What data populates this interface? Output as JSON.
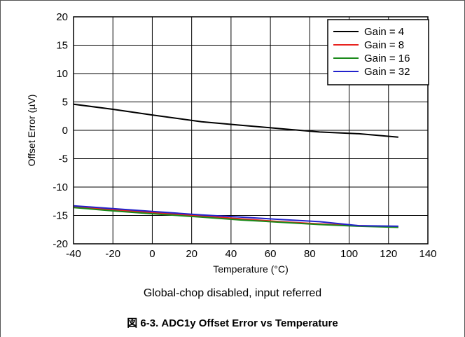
{
  "chart_data": {
    "type": "line",
    "xlabel": "Temperature (°C)",
    "ylabel": "Offset Error (µV)",
    "xlim": [
      -40,
      140
    ],
    "ylim": [
      -20,
      20
    ],
    "x_ticks": [
      "-40",
      "-20",
      "0",
      "20",
      "40",
      "60",
      "80",
      "100",
      "120",
      "140"
    ],
    "y_ticks": [
      "20",
      "15",
      "10",
      "5",
      "0",
      "-5",
      "-10",
      "-15",
      "-20"
    ],
    "grid": true,
    "legend_position": "top-right",
    "series": [
      {
        "name": "Gain = 4",
        "color": "#000000",
        "x": [
          -40,
          -20,
          0,
          25,
          45,
          65,
          85,
          105,
          125
        ],
        "y": [
          4.6,
          3.7,
          2.7,
          1.5,
          0.9,
          0.3,
          -0.3,
          -0.6,
          -1.2
        ]
      },
      {
        "name": "Gain = 8",
        "color": "#e8231f",
        "x": [
          -40,
          -20,
          0,
          25,
          45,
          65,
          85,
          105,
          125
        ],
        "y": [
          -13.5,
          -14.0,
          -14.5,
          -15.1,
          -15.6,
          -16.1,
          -16.5,
          -16.8,
          -17.0
        ]
      },
      {
        "name": "Gain = 16",
        "color": "#1a8a1a",
        "x": [
          -40,
          -20,
          0,
          25,
          45,
          65,
          85,
          105,
          125
        ],
        "y": [
          -13.6,
          -14.2,
          -14.7,
          -15.3,
          -15.8,
          -16.2,
          -16.6,
          -16.9,
          -17.1
        ]
      },
      {
        "name": "Gain = 32",
        "color": "#2222cc",
        "x": [
          -40,
          -20,
          0,
          25,
          45,
          65,
          85,
          105,
          125
        ],
        "y": [
          -13.3,
          -13.8,
          -14.3,
          -14.9,
          -15.3,
          -15.7,
          -16.1,
          -16.8,
          -16.9
        ]
      }
    ]
  },
  "caption": {
    "subtitle": "Global-chop disabled, input referred",
    "figure_title": "図 6-3. ADC1y Offset Error vs Temperature"
  },
  "colors": {
    "frame": "#555555",
    "grid": "#000000"
  }
}
